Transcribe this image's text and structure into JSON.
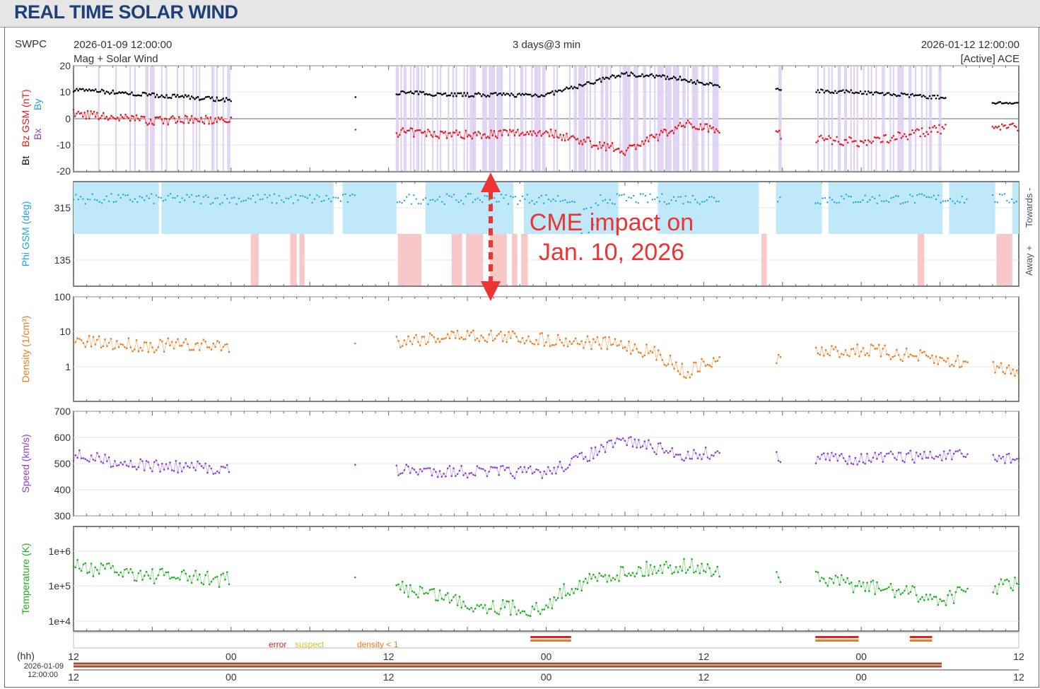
{
  "title": "REAL TIME SOLAR WIND",
  "header": {
    "source": "SWPC",
    "start_time": "2026-01-09 12:00:00",
    "end_time": "2026-01-12 12:00:00",
    "window": "3 days@3 min",
    "subtitle": "Mag + Solar Wind",
    "satellite": "[Active] ACE"
  },
  "annotation": {
    "line1": "CME impact on",
    "line2": "Jan. 10, 2026",
    "color": "#ee3333"
  },
  "quality_legend": {
    "error": "error",
    "suspect": "suspect",
    "density": "density < 1"
  },
  "time_axis": {
    "unit_label": "(hh)",
    "date_label": "2026-01-09",
    "time_label": "12:00:00",
    "tick_labels": [
      "12",
      "00",
      "12",
      "00",
      "12",
      "00",
      "12"
    ]
  },
  "colors": {
    "bt": "#000000",
    "bz": "#e8181c",
    "by": "#1aa6e0",
    "bx": "#8a3ddb",
    "fill_neg": "#ddd0f3",
    "phi": "#1aa6e0",
    "toward_fill": "#bfe8f8",
    "away_fill": "#f8c8c8",
    "density": "#f07a1a",
    "speed": "#8a3ddb",
    "temperature": "#1aae1a"
  },
  "chart_data": [
    {
      "type": "line",
      "title": "",
      "xlabel": "",
      "ylabel_parts": [
        "Bt",
        "Bz GSM (nT)",
        "By",
        "Bx"
      ],
      "ylim": [
        -20,
        20
      ],
      "ytick_labels": [
        "20",
        "10",
        "0",
        "-10",
        "-20"
      ],
      "x_hours": [
        0,
        6,
        12,
        18,
        21.4,
        24,
        30,
        36,
        42,
        46.6,
        48,
        54,
        60,
        66,
        72
      ],
      "series": [
        {
          "name": "Bt",
          "values": [
            11,
            9,
            7,
            null,
            8,
            10,
            9,
            9,
            17,
            15,
            13,
            11,
            10,
            8,
            6
          ]
        },
        {
          "name": "Bz GSM (nT)",
          "values": [
            2,
            -1,
            0,
            null,
            -4,
            -5,
            -6,
            -5,
            -12,
            -2,
            -3,
            -6,
            -9,
            -4,
            -3
          ]
        }
      ]
    },
    {
      "type": "scatter",
      "title": "",
      "ylabel": "Phi GSM (deg)",
      "right_labels": [
        "Towards -",
        "Away +"
      ],
      "ytick_labels": [
        "315",
        "135"
      ],
      "x_hours": [
        0,
        6,
        12,
        18,
        24,
        30,
        36,
        42,
        48,
        54,
        60,
        66,
        72
      ],
      "values": [
        315,
        320,
        310,
        300,
        320,
        330,
        60,
        280,
        310,
        305,
        300,
        310,
        320
      ]
    },
    {
      "type": "line",
      "title": "",
      "ylabel": "Density (1/cm³)",
      "scale": "log",
      "ylim": [
        0.1,
        100
      ],
      "ytick_labels": [
        "100",
        "10",
        "1"
      ],
      "x_hours": [
        0,
        6,
        12,
        18,
        21.4,
        24,
        30,
        36,
        42,
        46.6,
        48,
        54,
        60,
        66,
        72
      ],
      "values": [
        5,
        4,
        4,
        null,
        4,
        5,
        8,
        6,
        4,
        0.6,
        1.2,
        2,
        3,
        1.5,
        0.8
      ]
    },
    {
      "type": "line",
      "title": "",
      "ylabel": "Speed (km/s)",
      "ylim": [
        300,
        700
      ],
      "ytick_labels": [
        "700",
        "600",
        "500",
        "400",
        "300"
      ],
      "x_hours": [
        0,
        6,
        12,
        18,
        21.4,
        24,
        30,
        36,
        42,
        46.6,
        48,
        54,
        60,
        66,
        72
      ],
      "values": [
        530,
        490,
        480,
        null,
        475,
        475,
        470,
        465,
        590,
        530,
        540,
        525,
        520,
        530,
        520
      ]
    },
    {
      "type": "line",
      "title": "",
      "ylabel": "Temperature (K)",
      "scale": "log",
      "ylim": [
        5000,
        3000000
      ],
      "ytick_labels": [
        "1e+6",
        "1e+5",
        "1e+4"
      ],
      "x_hours": [
        0,
        6,
        12,
        18,
        21.4,
        24,
        30,
        36,
        42,
        46.6,
        48,
        54,
        60,
        66,
        72
      ],
      "values": [
        350000,
        200000,
        150000,
        null,
        120000,
        100000,
        30000,
        20000,
        250000,
        400000,
        300000,
        200000,
        100000,
        40000,
        120000
      ]
    }
  ]
}
